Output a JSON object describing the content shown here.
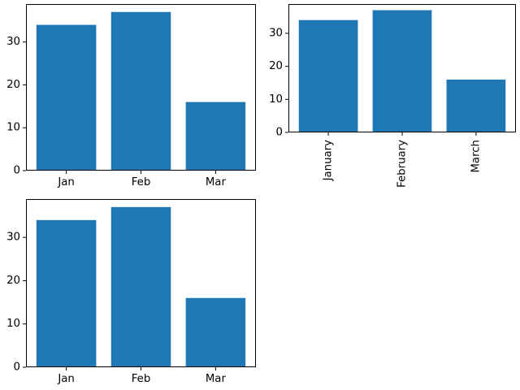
{
  "figure": {
    "background": "#ffffff",
    "layout": "2x2 grid, bottom-right cell empty"
  },
  "chart_data": [
    {
      "type": "bar",
      "title": "",
      "xlabel": "",
      "ylabel": "",
      "categories": [
        "Jan",
        "Feb",
        "Mar"
      ],
      "values": [
        34,
        37,
        16
      ],
      "yticks": [
        0,
        10,
        20,
        30
      ],
      "ylim": [
        0,
        38.85
      ],
      "xlim": [
        -0.54,
        2.54
      ],
      "bar_width": 0.8,
      "bar_color": "#1f77b4",
      "axis_color": "#000000",
      "xtick_rotation": 0,
      "grid": false,
      "legend": null
    },
    {
      "type": "bar",
      "title": "",
      "xlabel": "",
      "ylabel": "",
      "categories": [
        "January",
        "February",
        "March"
      ],
      "values": [
        34,
        37,
        16
      ],
      "yticks": [
        0,
        10,
        20,
        30
      ],
      "ylim": [
        0,
        38.85
      ],
      "xlim": [
        -0.54,
        2.54
      ],
      "bar_width": 0.8,
      "bar_color": "#1f77b4",
      "axis_color": "#000000",
      "xtick_rotation": 90,
      "grid": false,
      "legend": null
    },
    {
      "type": "bar",
      "title": "",
      "xlabel": "",
      "ylabel": "",
      "categories": [
        "Jan",
        "Feb",
        "Mar"
      ],
      "values": [
        34,
        37,
        16
      ],
      "yticks": [
        0,
        10,
        20,
        30
      ],
      "ylim": [
        0,
        38.85
      ],
      "xlim": [
        -0.54,
        2.54
      ],
      "bar_width": 0.8,
      "bar_color": "#1f77b4",
      "axis_color": "#000000",
      "xtick_rotation": 0,
      "grid": false,
      "legend": null
    }
  ]
}
